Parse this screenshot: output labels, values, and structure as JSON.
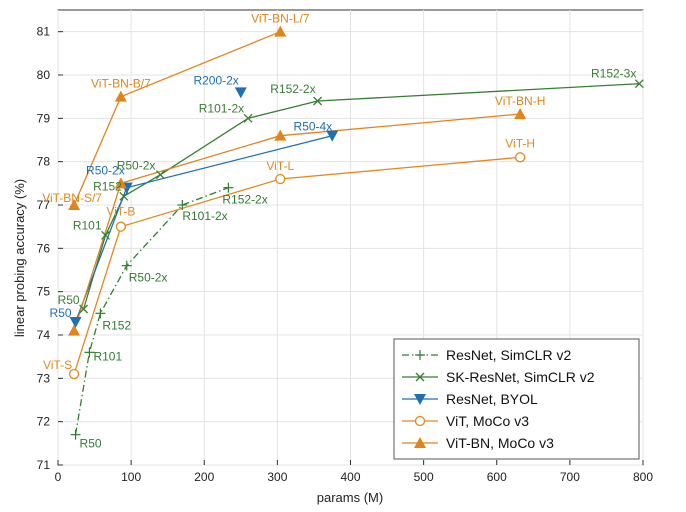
{
  "chart_data": {
    "type": "line",
    "xlabel": "params (M)",
    "ylabel": "linear probing accuracy (%)",
    "xlim": [
      0,
      800
    ],
    "ylim": [
      71,
      81.5
    ],
    "xticks": [
      0,
      100,
      200,
      300,
      400,
      500,
      600,
      700,
      800
    ],
    "yticks": [
      71,
      72,
      73,
      74,
      75,
      76,
      77,
      78,
      79,
      80,
      81
    ],
    "grid": true,
    "legend_position": "bottom-right",
    "series": [
      {
        "name": "ResNet, SimCLR v2",
        "color": "#2e7d32",
        "marker": "plus",
        "line": "dashdot",
        "points": [
          {
            "x": 24,
            "y": 71.7,
            "label": "R50"
          },
          {
            "x": 43,
            "y": 73.6,
            "label": "R101"
          },
          {
            "x": 58,
            "y": 74.5,
            "label": "R152"
          },
          {
            "x": 94,
            "y": 75.6,
            "label": "R50-2x"
          },
          {
            "x": 170,
            "y": 77.0,
            "label": "R101-2x"
          },
          {
            "x": 233,
            "y": 77.4,
            "label": "R152-2x"
          }
        ]
      },
      {
        "name": "SK-ResNet, SimCLR v2",
        "color": "#3a7d34",
        "marker": "x",
        "line": "solid",
        "points": [
          {
            "x": 35,
            "y": 74.6,
            "label": "R50"
          },
          {
            "x": 65,
            "y": 76.3,
            "label": "R101"
          },
          {
            "x": 90,
            "y": 77.2,
            "label": "R152"
          },
          {
            "x": 140,
            "y": 77.7,
            "label": "R50-2x"
          },
          {
            "x": 260,
            "y": 79.0,
            "label": "R101-2x"
          },
          {
            "x": 355,
            "y": 79.4,
            "label": "R152-2x"
          },
          {
            "x": 795,
            "y": 79.8,
            "label": "R152-3x"
          }
        ]
      },
      {
        "name": "ResNet, BYOL",
        "color": "#1f6fb2",
        "marker": "triangle-down",
        "line": "solid",
        "points": [
          {
            "x": 24,
            "y": 74.3,
            "label": "R50"
          },
          {
            "x": 94,
            "y": 77.4,
            "label": "R50-2x"
          },
          {
            "x": 375,
            "y": 78.6,
            "label": "R50-4x"
          },
          {
            "x": 250,
            "y": 79.6,
            "label": "R200-2x"
          }
        ]
      },
      {
        "name": "ViT, MoCo v3",
        "color": "#e08a1e",
        "marker": "circle",
        "line": "solid",
        "points": [
          {
            "x": 22,
            "y": 73.1,
            "label": "ViT-S"
          },
          {
            "x": 86,
            "y": 76.5,
            "label": "ViT-B"
          },
          {
            "x": 304,
            "y": 77.6,
            "label": "ViT-L"
          },
          {
            "x": 632,
            "y": 78.1,
            "label": "ViT-H"
          }
        ]
      },
      {
        "name": "ViT-BN, MoCo v3",
        "color": "#e0841b",
        "marker": "triangle-up",
        "line": "solid",
        "points": [
          {
            "x": 22,
            "y": 74.1,
            "label": ""
          },
          {
            "x": 22,
            "y": 77.0,
            "label": "ViT-BN-S/7"
          },
          {
            "x": 86,
            "y": 77.5,
            "label": ""
          },
          {
            "x": 86,
            "y": 79.5,
            "label": "ViT-BN-B/7"
          },
          {
            "x": 304,
            "y": 78.6,
            "label": ""
          },
          {
            "x": 304,
            "y": 81.0,
            "label": "ViT-BN-L/7"
          },
          {
            "x": 632,
            "y": 79.1,
            "label": "ViT-BN-H"
          }
        ]
      }
    ]
  }
}
